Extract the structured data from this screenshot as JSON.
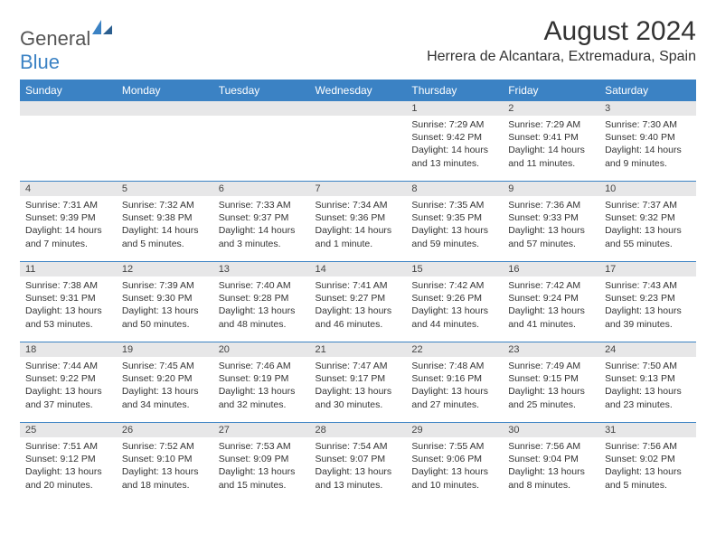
{
  "logo": {
    "text1": "General",
    "text2": "Blue"
  },
  "title": "August 2024",
  "location": "Herrera de Alcantara, Extremadura, Spain",
  "colors": {
    "brand_blue": "#3b82c4",
    "grey_row": "#e7e7e8",
    "text": "#333333",
    "logo_grey": "#555555"
  },
  "dow": [
    "Sunday",
    "Monday",
    "Tuesday",
    "Wednesday",
    "Thursday",
    "Friday",
    "Saturday"
  ],
  "weeks": [
    [
      {
        "n": "",
        "sr": "",
        "ss": "",
        "dl": ""
      },
      {
        "n": "",
        "sr": "",
        "ss": "",
        "dl": ""
      },
      {
        "n": "",
        "sr": "",
        "ss": "",
        "dl": ""
      },
      {
        "n": "",
        "sr": "",
        "ss": "",
        "dl": ""
      },
      {
        "n": "1",
        "sr": "Sunrise: 7:29 AM",
        "ss": "Sunset: 9:42 PM",
        "dl": "Daylight: 14 hours and 13 minutes."
      },
      {
        "n": "2",
        "sr": "Sunrise: 7:29 AM",
        "ss": "Sunset: 9:41 PM",
        "dl": "Daylight: 14 hours and 11 minutes."
      },
      {
        "n": "3",
        "sr": "Sunrise: 7:30 AM",
        "ss": "Sunset: 9:40 PM",
        "dl": "Daylight: 14 hours and 9 minutes."
      }
    ],
    [
      {
        "n": "4",
        "sr": "Sunrise: 7:31 AM",
        "ss": "Sunset: 9:39 PM",
        "dl": "Daylight: 14 hours and 7 minutes."
      },
      {
        "n": "5",
        "sr": "Sunrise: 7:32 AM",
        "ss": "Sunset: 9:38 PM",
        "dl": "Daylight: 14 hours and 5 minutes."
      },
      {
        "n": "6",
        "sr": "Sunrise: 7:33 AM",
        "ss": "Sunset: 9:37 PM",
        "dl": "Daylight: 14 hours and 3 minutes."
      },
      {
        "n": "7",
        "sr": "Sunrise: 7:34 AM",
        "ss": "Sunset: 9:36 PM",
        "dl": "Daylight: 14 hours and 1 minute."
      },
      {
        "n": "8",
        "sr": "Sunrise: 7:35 AM",
        "ss": "Sunset: 9:35 PM",
        "dl": "Daylight: 13 hours and 59 minutes."
      },
      {
        "n": "9",
        "sr": "Sunrise: 7:36 AM",
        "ss": "Sunset: 9:33 PM",
        "dl": "Daylight: 13 hours and 57 minutes."
      },
      {
        "n": "10",
        "sr": "Sunrise: 7:37 AM",
        "ss": "Sunset: 9:32 PM",
        "dl": "Daylight: 13 hours and 55 minutes."
      }
    ],
    [
      {
        "n": "11",
        "sr": "Sunrise: 7:38 AM",
        "ss": "Sunset: 9:31 PM",
        "dl": "Daylight: 13 hours and 53 minutes."
      },
      {
        "n": "12",
        "sr": "Sunrise: 7:39 AM",
        "ss": "Sunset: 9:30 PM",
        "dl": "Daylight: 13 hours and 50 minutes."
      },
      {
        "n": "13",
        "sr": "Sunrise: 7:40 AM",
        "ss": "Sunset: 9:28 PM",
        "dl": "Daylight: 13 hours and 48 minutes."
      },
      {
        "n": "14",
        "sr": "Sunrise: 7:41 AM",
        "ss": "Sunset: 9:27 PM",
        "dl": "Daylight: 13 hours and 46 minutes."
      },
      {
        "n": "15",
        "sr": "Sunrise: 7:42 AM",
        "ss": "Sunset: 9:26 PM",
        "dl": "Daylight: 13 hours and 44 minutes."
      },
      {
        "n": "16",
        "sr": "Sunrise: 7:42 AM",
        "ss": "Sunset: 9:24 PM",
        "dl": "Daylight: 13 hours and 41 minutes."
      },
      {
        "n": "17",
        "sr": "Sunrise: 7:43 AM",
        "ss": "Sunset: 9:23 PM",
        "dl": "Daylight: 13 hours and 39 minutes."
      }
    ],
    [
      {
        "n": "18",
        "sr": "Sunrise: 7:44 AM",
        "ss": "Sunset: 9:22 PM",
        "dl": "Daylight: 13 hours and 37 minutes."
      },
      {
        "n": "19",
        "sr": "Sunrise: 7:45 AM",
        "ss": "Sunset: 9:20 PM",
        "dl": "Daylight: 13 hours and 34 minutes."
      },
      {
        "n": "20",
        "sr": "Sunrise: 7:46 AM",
        "ss": "Sunset: 9:19 PM",
        "dl": "Daylight: 13 hours and 32 minutes."
      },
      {
        "n": "21",
        "sr": "Sunrise: 7:47 AM",
        "ss": "Sunset: 9:17 PM",
        "dl": "Daylight: 13 hours and 30 minutes."
      },
      {
        "n": "22",
        "sr": "Sunrise: 7:48 AM",
        "ss": "Sunset: 9:16 PM",
        "dl": "Daylight: 13 hours and 27 minutes."
      },
      {
        "n": "23",
        "sr": "Sunrise: 7:49 AM",
        "ss": "Sunset: 9:15 PM",
        "dl": "Daylight: 13 hours and 25 minutes."
      },
      {
        "n": "24",
        "sr": "Sunrise: 7:50 AM",
        "ss": "Sunset: 9:13 PM",
        "dl": "Daylight: 13 hours and 23 minutes."
      }
    ],
    [
      {
        "n": "25",
        "sr": "Sunrise: 7:51 AM",
        "ss": "Sunset: 9:12 PM",
        "dl": "Daylight: 13 hours and 20 minutes."
      },
      {
        "n": "26",
        "sr": "Sunrise: 7:52 AM",
        "ss": "Sunset: 9:10 PM",
        "dl": "Daylight: 13 hours and 18 minutes."
      },
      {
        "n": "27",
        "sr": "Sunrise: 7:53 AM",
        "ss": "Sunset: 9:09 PM",
        "dl": "Daylight: 13 hours and 15 minutes."
      },
      {
        "n": "28",
        "sr": "Sunrise: 7:54 AM",
        "ss": "Sunset: 9:07 PM",
        "dl": "Daylight: 13 hours and 13 minutes."
      },
      {
        "n": "29",
        "sr": "Sunrise: 7:55 AM",
        "ss": "Sunset: 9:06 PM",
        "dl": "Daylight: 13 hours and 10 minutes."
      },
      {
        "n": "30",
        "sr": "Sunrise: 7:56 AM",
        "ss": "Sunset: 9:04 PM",
        "dl": "Daylight: 13 hours and 8 minutes."
      },
      {
        "n": "31",
        "sr": "Sunrise: 7:56 AM",
        "ss": "Sunset: 9:02 PM",
        "dl": "Daylight: 13 hours and 5 minutes."
      }
    ]
  ]
}
